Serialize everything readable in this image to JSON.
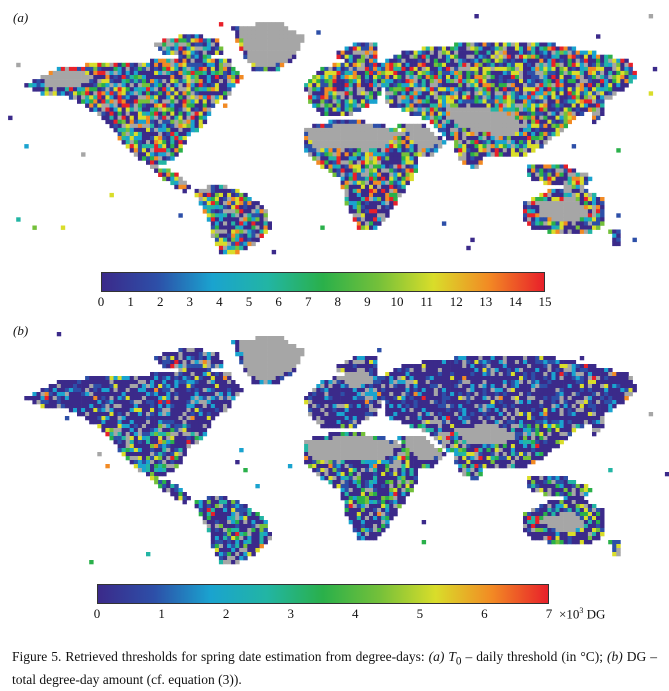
{
  "panels": [
    {
      "label": "(a)",
      "chart_data": {
        "type": "heatmap",
        "colorbar": {
          "min": 0,
          "max": 15,
          "ticks": [
            0,
            1,
            2,
            3,
            4,
            5,
            6,
            7,
            8,
            9,
            10,
            11,
            12,
            13,
            14,
            15
          ],
          "unit_base": "",
          "unit_exp": "",
          "unit_suffix": ""
        },
        "palette": [
          "#3b2a8a",
          "#2d4fa8",
          "#1aa3cf",
          "#22b5a4",
          "#2ab04a",
          "#74c03a",
          "#d9dd2a",
          "#f28a24",
          "#e8202a"
        ],
        "missing_color": "#a6a6a6"
      }
    },
    {
      "label": "(b)",
      "chart_data": {
        "type": "heatmap",
        "colorbar": {
          "min": 0,
          "max": 7,
          "ticks": [
            0,
            1,
            2,
            3,
            4,
            5,
            6,
            7
          ],
          "unit_base": "×10",
          "unit_exp": "3",
          "unit_suffix": " DG"
        },
        "palette": [
          "#3b2a8a",
          "#2d4fa8",
          "#1aa3cf",
          "#22b5a4",
          "#2ab04a",
          "#74c03a",
          "#d9dd2a",
          "#f28a24",
          "#e8202a"
        ],
        "missing_color": "#a6a6a6"
      }
    }
  ],
  "caption": {
    "prefix": "Figure 5.   Retrieved thresholds for spring date estimation from degree-days: ",
    "a_label": "(a)",
    "t0_symbol": "T",
    "t0_sub": "0",
    "mid1": " – daily threshold (in °C); ",
    "b_label": "(b)",
    "mid2": " DG – total degree-day amount (cf. equation (3))."
  }
}
